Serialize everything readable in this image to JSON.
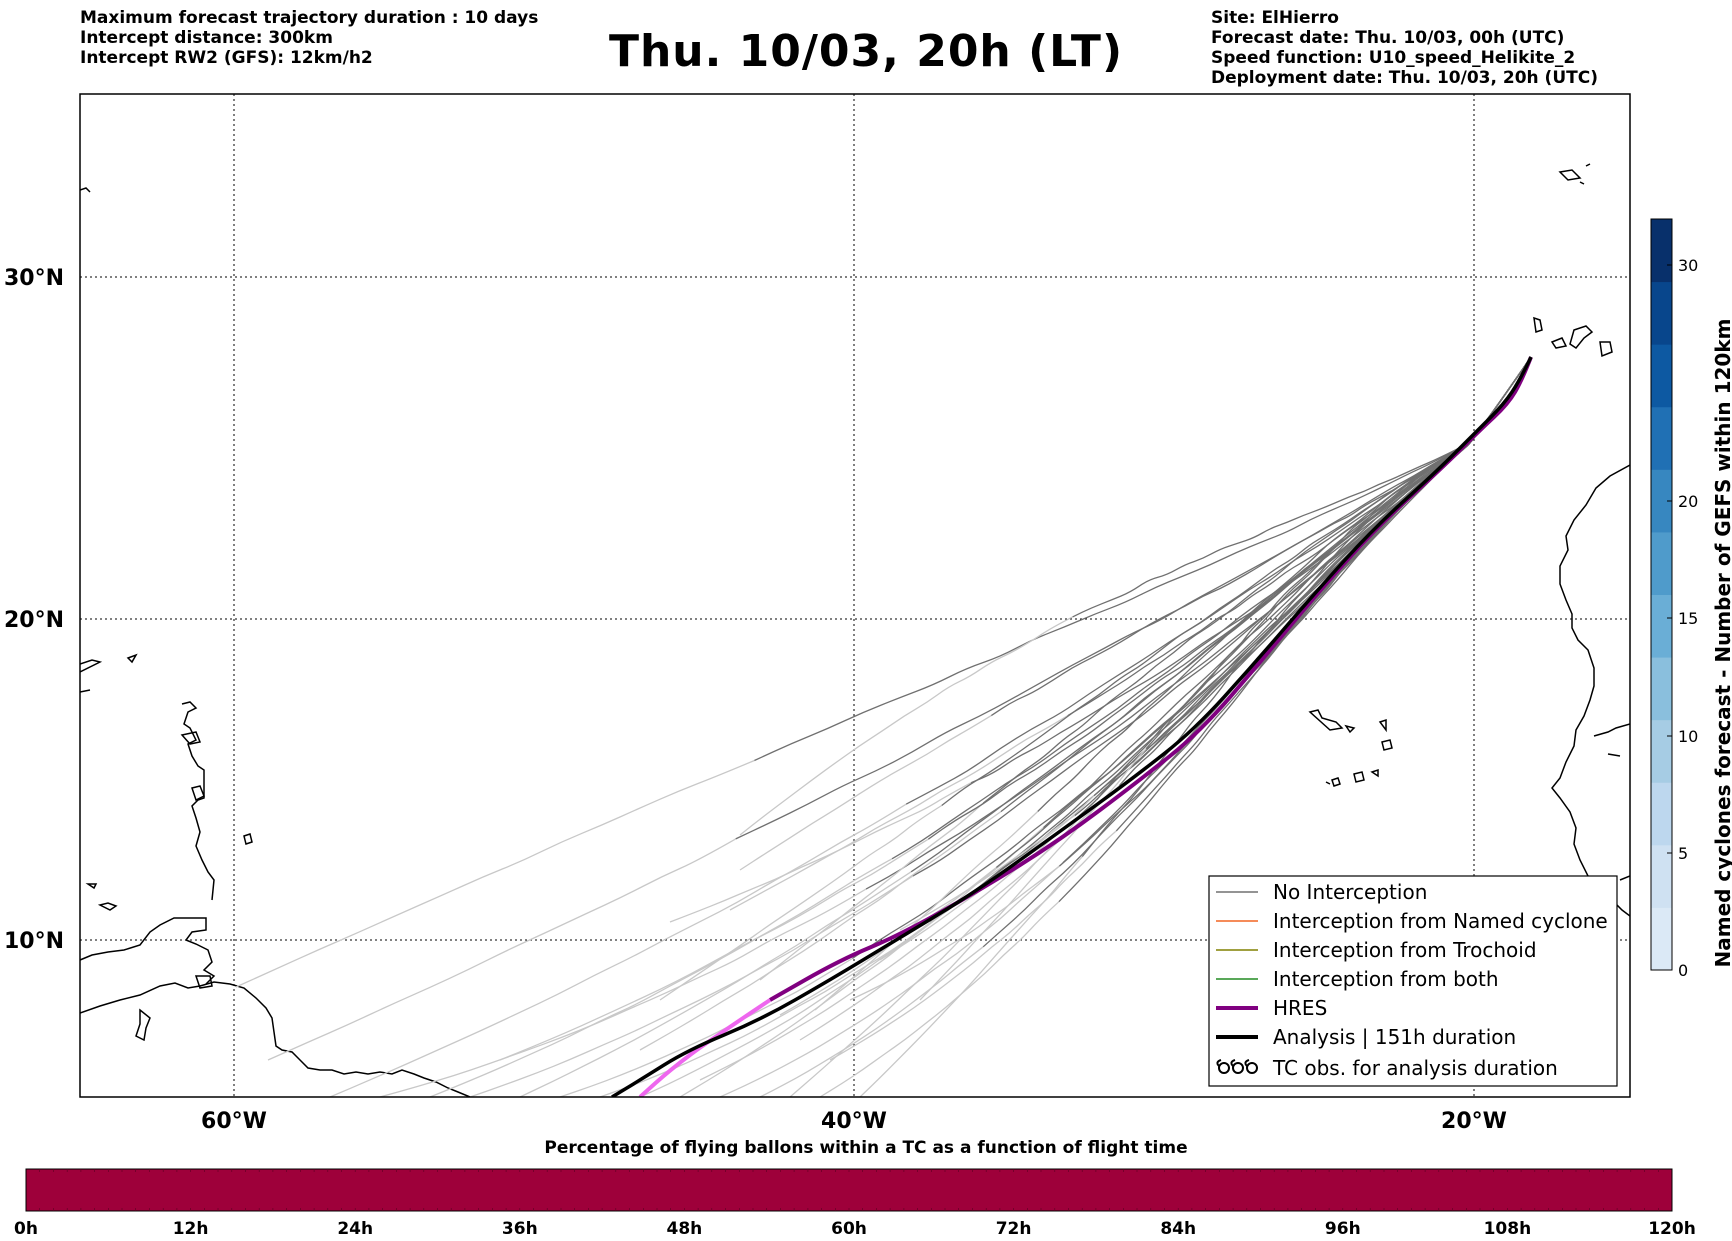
{
  "header": {
    "left_lines": [
      "Maximum forecast trajectory duration : 10 days",
      "Intercept distance: 300km",
      "Intercept RW2 (GFS):  12km/h2"
    ],
    "right_lines": [
      "Site: ElHierro",
      "Forecast date: Thu. 10/03, 00h (UTC)",
      "Speed function: U10_speed_Helikite_2",
      "Deployment date: Thu. 10/03, 20h (UTC)"
    ],
    "title": "Thu. 10/03, 20h (LT)"
  },
  "map": {
    "lat_labels": [
      "30°N",
      "20°N",
      "10°N"
    ],
    "lon_labels": [
      "60°W",
      "40°W",
      "20°W"
    ],
    "colors": {
      "no_interception": "#707070",
      "no_interception_late": "#c8c8c8",
      "named_cyclone": "#f26522",
      "trochoid": "#808000",
      "both": "#228b22",
      "hres": "#800080",
      "hres_late": "#ee66ee",
      "analysis": "#000000"
    },
    "legend": [
      {
        "label": "No Interception",
        "symbol": "thin-line-gray-icon",
        "color": "#707070"
      },
      {
        "label": "Interception from Named cyclone",
        "symbol": "thin-line-orange-icon",
        "color": "#f26522"
      },
      {
        "label": "Interception from Trochoid",
        "symbol": "thin-line-olive-icon",
        "color": "#808000"
      },
      {
        "label": "Interception from both",
        "symbol": "thin-line-green-icon",
        "color": "#228b22"
      },
      {
        "label": "HRES",
        "symbol": "thick-line-purple-icon",
        "color": "#800080"
      },
      {
        "label": "Analysis | 151h duration",
        "symbol": "thick-line-black-icon",
        "color": "#000000"
      },
      {
        "label": "TC obs. for analysis duration",
        "symbol": "cyclone-symbols-icon",
        "color": "#000000"
      }
    ]
  },
  "colorbar": {
    "label": "Named cyclones forecast - Number of GEFS within 120km",
    "ticks": [
      "0",
      "5",
      "10",
      "15",
      "20",
      "30"
    ],
    "colors": [
      "#dbe9f6",
      "#cfe1f2",
      "#bdd7ee",
      "#a6cce4",
      "#8abfdd",
      "#6aaed6",
      "#4f9bcb",
      "#3787c0",
      "#2070b4",
      "#0d59a2",
      "#08468c",
      "#08306b"
    ]
  },
  "time_bar": {
    "caption": "Percentage of flying ballons within a TC as a function of flight time",
    "labels": [
      "0h",
      "12h",
      "24h",
      "36h",
      "48h",
      "60h",
      "72h",
      "84h",
      "96h",
      "108h",
      "120h"
    ],
    "fill_color": "#9e003a",
    "percent_values": [
      0,
      0,
      0,
      0,
      0,
      0,
      0,
      0,
      0,
      0,
      0
    ]
  }
}
